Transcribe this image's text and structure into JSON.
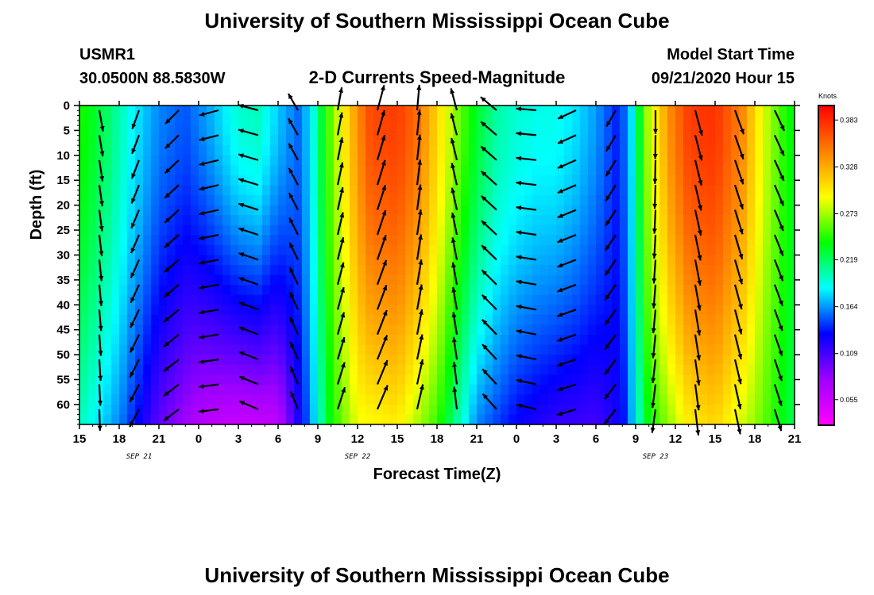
{
  "header": {
    "title": "University of Southern Mississippi Ocean Cube",
    "station_name": "USMR1",
    "station_coords": "30.0500N 88.5830W",
    "subtitle": "2-D Currents Speed-Magnitude",
    "model_start_label": "Model Start Time",
    "model_start_value": "09/21/2020 Hour 15"
  },
  "footer": {
    "title": "University of Southern Mississippi Ocean Cube"
  },
  "chart_data": {
    "type": "heatmap",
    "title": "2-D Currents Speed-Magnitude",
    "xlabel": "Forecast Time(Z)",
    "ylabel": "Depth (ft)",
    "x_tick_labels": [
      "15",
      "18",
      "21",
      "0",
      "3",
      "6",
      "9",
      "12",
      "15",
      "18",
      "21",
      "0",
      "3",
      "6",
      "9",
      "12",
      "15",
      "18",
      "21"
    ],
    "x_hours_since_start": [
      0,
      3,
      6,
      9,
      12,
      15,
      18,
      21,
      24,
      27,
      30,
      33,
      36,
      39,
      42,
      45,
      48,
      51,
      54
    ],
    "date_labels": [
      {
        "label": "SEP 21",
        "hours_since_start": 4.5
      },
      {
        "label": "SEP 22",
        "hours_since_start": 21
      },
      {
        "label": "SEP 23",
        "hours_since_start": 43.5
      }
    ],
    "y_ticks": [
      0,
      5,
      10,
      15,
      20,
      25,
      30,
      35,
      40,
      45,
      50,
      55,
      60
    ],
    "ylim": [
      0,
      64
    ],
    "y_inverted": true,
    "colorbar": {
      "label": "Knots",
      "ticks": [
        0.055,
        0.109,
        0.164,
        0.219,
        0.273,
        0.328,
        0.383
      ],
      "range": [
        0.025,
        0.4
      ],
      "colors": [
        "#ff00ff",
        "#a000ff",
        "#0000ff",
        "#00ffff",
        "#00ff00",
        "#ffff00",
        "#ff8000",
        "#ff0000"
      ]
    },
    "surface_speed_knots": [
      {
        "hour": 0,
        "speed": 0.245
      },
      {
        "hour": 2,
        "speed": 0.22
      },
      {
        "hour": 4,
        "speed": 0.185
      },
      {
        "hour": 6,
        "speed": 0.16
      },
      {
        "hour": 8,
        "speed": 0.15
      },
      {
        "hour": 10,
        "speed": 0.17
      },
      {
        "hour": 12,
        "speed": 0.195
      },
      {
        "hour": 13.5,
        "speed": 0.2
      },
      {
        "hour": 15,
        "speed": 0.175
      },
      {
        "hour": 16.5,
        "speed": 0.155
      },
      {
        "hour": 17.5,
        "speed": 0.18
      },
      {
        "hour": 18.5,
        "speed": 0.24
      },
      {
        "hour": 20,
        "speed": 0.3
      },
      {
        "hour": 21,
        "speed": 0.34
      },
      {
        "hour": 22,
        "speed": 0.37
      },
      {
        "hour": 24,
        "speed": 0.375
      },
      {
        "hour": 25.5,
        "speed": 0.355
      },
      {
        "hour": 27,
        "speed": 0.31
      },
      {
        "hour": 28.5,
        "speed": 0.265
      },
      {
        "hour": 30,
        "speed": 0.23
      },
      {
        "hour": 31.5,
        "speed": 0.205
      },
      {
        "hour": 33,
        "speed": 0.195
      },
      {
        "hour": 34.5,
        "speed": 0.19
      },
      {
        "hour": 36,
        "speed": 0.19
      },
      {
        "hour": 37.5,
        "speed": 0.18
      },
      {
        "hour": 39,
        "speed": 0.165
      },
      {
        "hour": 40.5,
        "speed": 0.14
      },
      {
        "hour": 41.5,
        "speed": 0.16
      },
      {
        "hour": 42,
        "speed": 0.21
      },
      {
        "hour": 43,
        "speed": 0.28
      },
      {
        "hour": 44.5,
        "speed": 0.34
      },
      {
        "hour": 46,
        "speed": 0.375
      },
      {
        "hour": 48,
        "speed": 0.38
      },
      {
        "hour": 50,
        "speed": 0.345
      },
      {
        "hour": 51.5,
        "speed": 0.29
      },
      {
        "hour": 53,
        "speed": 0.25
      },
      {
        "hour": 54,
        "speed": 0.235
      }
    ],
    "deep_speed_knots": [
      {
        "hour": 0,
        "speed": 0.2
      },
      {
        "hour": 3,
        "speed": 0.16
      },
      {
        "hour": 6,
        "speed": 0.1
      },
      {
        "hour": 9,
        "speed": 0.065
      },
      {
        "hour": 12,
        "speed": 0.055
      },
      {
        "hour": 15,
        "speed": 0.06
      },
      {
        "hour": 17,
        "speed": 0.14
      },
      {
        "hour": 19,
        "speed": 0.24
      },
      {
        "hour": 21,
        "speed": 0.29
      },
      {
        "hour": 24,
        "speed": 0.3
      },
      {
        "hour": 27,
        "speed": 0.25
      },
      {
        "hour": 30,
        "speed": 0.16
      },
      {
        "hour": 33,
        "speed": 0.13
      },
      {
        "hour": 36,
        "speed": 0.115
      },
      {
        "hour": 39,
        "speed": 0.11
      },
      {
        "hour": 41,
        "speed": 0.13
      },
      {
        "hour": 43,
        "speed": 0.24
      },
      {
        "hour": 46,
        "speed": 0.3
      },
      {
        "hour": 48,
        "speed": 0.31
      },
      {
        "hour": 51,
        "speed": 0.27
      },
      {
        "hour": 54,
        "speed": 0.22
      }
    ],
    "current_direction_deg_cw_from_east": [
      {
        "hour": 0,
        "angle": 60
      },
      {
        "hour": 3,
        "angle": 100
      },
      {
        "hour": 6,
        "angle": 120
      },
      {
        "hour": 9,
        "angle": 150
      },
      {
        "hour": 12,
        "angle": 180
      },
      {
        "hour": 15,
        "angle": 210
      },
      {
        "hour": 18,
        "angle": 270
      },
      {
        "hour": 21,
        "angle": 290
      },
      {
        "hour": 24,
        "angle": 280
      },
      {
        "hour": 27,
        "angle": 270
      },
      {
        "hour": 30,
        "angle": 240
      },
      {
        "hour": 33,
        "angle": 200
      },
      {
        "hour": 36,
        "angle": 170
      },
      {
        "hour": 39,
        "angle": 140
      },
      {
        "hour": 42,
        "angle": 100
      },
      {
        "hour": 45,
        "angle": 80
      },
      {
        "hour": 48,
        "angle": 70
      },
      {
        "hour": 51,
        "angle": 70
      },
      {
        "hour": 54,
        "angle": 60
      }
    ]
  }
}
